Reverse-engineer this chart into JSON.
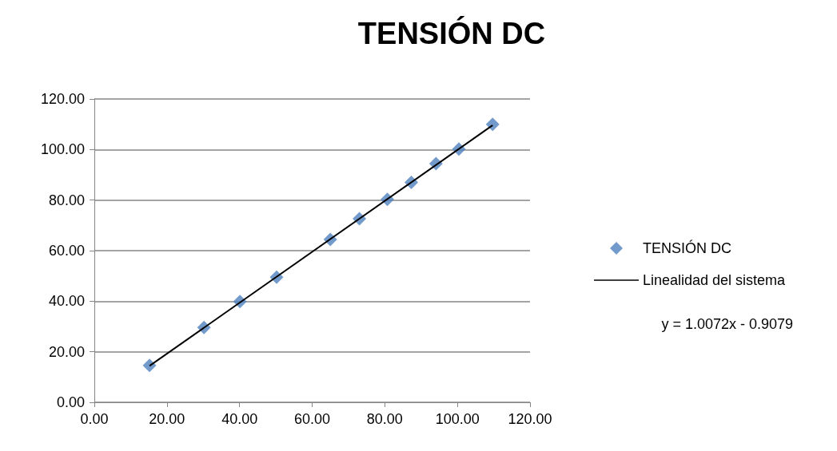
{
  "chart_data": {
    "type": "scatter",
    "title": "TENSIÓN DC",
    "series": [
      {
        "name": "TENSIÓN DC",
        "color": "#4f81bd",
        "marker": "diamond",
        "x": [
          15.2,
          30.2,
          40.1,
          50.2,
          65.0,
          73.0,
          80.7,
          87.3,
          94.1,
          100.4,
          109.7
        ],
        "values": [
          14.6,
          29.6,
          39.9,
          49.5,
          64.4,
          72.6,
          80.3,
          87.0,
          94.4,
          100.2,
          110.0
        ]
      },
      {
        "name": "Linealidad del sistema",
        "type": "line",
        "color": "#000000",
        "marker": "none",
        "line_style": "solid",
        "x": [
          15.2,
          109.7
        ],
        "values": [
          14.4,
          109.6
        ]
      }
    ],
    "annotations": [
      "y = 1.0072x - 0.9079"
    ],
    "xlim": [
      0,
      120
    ],
    "xticks": [
      {
        "value": 0,
        "label": "0.00"
      },
      {
        "value": 20,
        "label": "20.00"
      },
      {
        "value": 40,
        "label": "40.00"
      },
      {
        "value": 60,
        "label": "60.00"
      },
      {
        "value": 80,
        "label": "80.00"
      },
      {
        "value": 100,
        "label": "100.00"
      },
      {
        "value": 120,
        "label": "120.00"
      }
    ],
    "ylim": [
      0,
      120
    ],
    "yticks": [
      {
        "value": 0,
        "label": "0.00"
      },
      {
        "value": 20,
        "label": "20.00"
      },
      {
        "value": 40,
        "label": "40.00"
      },
      {
        "value": 60,
        "label": "60.00"
      },
      {
        "value": 80,
        "label": "80.00"
      },
      {
        "value": 100,
        "label": "100.00"
      },
      {
        "value": 120,
        "label": "120.00"
      }
    ],
    "grid": "y",
    "legend": "right"
  }
}
